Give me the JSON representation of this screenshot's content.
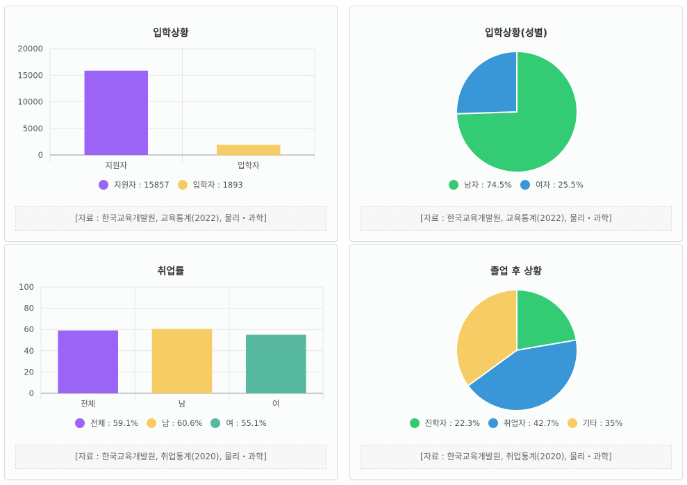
{
  "colors": {
    "purple": "#9c63f7",
    "yellow": "#f8cc65",
    "teal": "#56b9a0",
    "green": "#33cc74",
    "blue": "#3996d7"
  },
  "cards": [
    {
      "title": "입학상황",
      "source": "[자료 : 한국교육개발원, 교육통계(2022), 물리・과학]",
      "legend": [
        {
          "label": "지원자 : 15857",
          "color": "#9c63f7"
        },
        {
          "label": "입학자 : 1893",
          "color": "#f8cc65"
        }
      ]
    },
    {
      "title": "입학상황(성별)",
      "source": "[자료 : 한국교육개발원, 교육통계(2022), 물리・과학]",
      "legend": [
        {
          "label": "남자 : 74.5%",
          "color": "#33cc74"
        },
        {
          "label": "여자 : 25.5%",
          "color": "#3996d7"
        }
      ]
    },
    {
      "title": "취업률",
      "source": "[자료 : 한국교육개발원, 취업통계(2020), 물리・과학]",
      "legend": [
        {
          "label": "전체 : 59.1%",
          "color": "#9c63f7"
        },
        {
          "label": "남 : 60.6%",
          "color": "#f8cc65"
        },
        {
          "label": "여 : 55.1%",
          "color": "#56b9a0"
        }
      ]
    },
    {
      "title": "졸업 후 상황",
      "source": "[자료 : 한국교육개발원, 취업통계(2020), 물리・과학]",
      "legend": [
        {
          "label": "진학자 : 22.3%",
          "color": "#33cc74"
        },
        {
          "label": "취업자 : 42.7%",
          "color": "#3996d7"
        },
        {
          "label": "기타 : 35%",
          "color": "#f8cc65"
        }
      ]
    }
  ],
  "chart_data": [
    {
      "type": "bar",
      "title": "입학상황",
      "categories": [
        "지원자",
        "입학자"
      ],
      "values": [
        15857,
        1893
      ],
      "colors": [
        "#9c63f7",
        "#f8cc65"
      ],
      "ylim": [
        0,
        20000
      ],
      "yticks": [
        0,
        5000,
        10000,
        15000,
        20000
      ],
      "grid": true,
      "legend": "bottom"
    },
    {
      "type": "pie",
      "title": "입학상황(성별)",
      "labels": [
        "남자",
        "여자"
      ],
      "values": [
        74.5,
        25.5
      ],
      "colors": [
        "#33cc74",
        "#3996d7"
      ],
      "legend": "bottom"
    },
    {
      "type": "bar",
      "title": "취업률",
      "categories": [
        "전체",
        "남",
        "여"
      ],
      "values": [
        59.1,
        60.6,
        55.1
      ],
      "colors": [
        "#9c63f7",
        "#f8cc65",
        "#56b9a0"
      ],
      "ylim": [
        0,
        100
      ],
      "yticks": [
        0,
        20,
        40,
        60,
        80,
        100
      ],
      "grid": true,
      "legend": "bottom"
    },
    {
      "type": "pie",
      "title": "졸업 후 상황",
      "labels": [
        "진학자",
        "취업자",
        "기타"
      ],
      "values": [
        22.3,
        42.7,
        35
      ],
      "colors": [
        "#33cc74",
        "#3996d7",
        "#f8cc65"
      ],
      "legend": "bottom"
    }
  ]
}
